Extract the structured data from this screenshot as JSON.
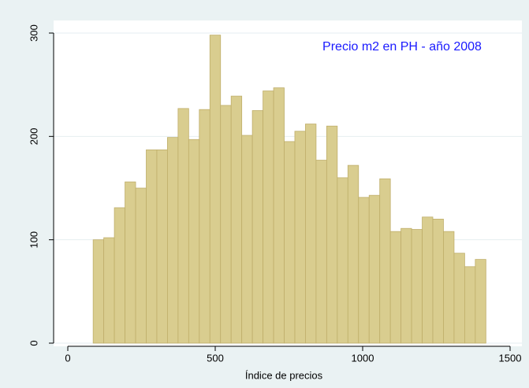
{
  "chart_data": {
    "type": "histogram",
    "title": "Precio m2 en PH - año 2008",
    "x_label": "Índice de precios",
    "bins": [
      86,
      122,
      158,
      194,
      230,
      266,
      302,
      338,
      374,
      410,
      446,
      482,
      518,
      554,
      590,
      626,
      662,
      698,
      734,
      770,
      806,
      842,
      878,
      914,
      950,
      986,
      1022,
      1058,
      1094,
      1130,
      1166,
      1202,
      1238,
      1274,
      1310,
      1346,
      1382,
      1418
    ],
    "values": [
      100,
      102,
      131,
      156,
      150,
      187,
      187,
      199,
      227,
      197,
      226,
      298,
      230,
      239,
      201,
      225,
      244,
      247,
      195,
      205,
      212,
      177,
      210,
      160,
      172,
      141,
      143,
      159,
      108,
      111,
      110,
      122,
      120,
      108,
      87,
      74,
      81
    ],
    "color": "#d9cd8f",
    "title_color": "#1a1aff",
    "xlim": [
      0,
      1500
    ],
    "xticks": [
      0,
      500,
      1000,
      1500
    ],
    "ylim": [
      0,
      300
    ],
    "yticks": [
      0,
      100,
      200,
      300
    ],
    "grid": true
  }
}
